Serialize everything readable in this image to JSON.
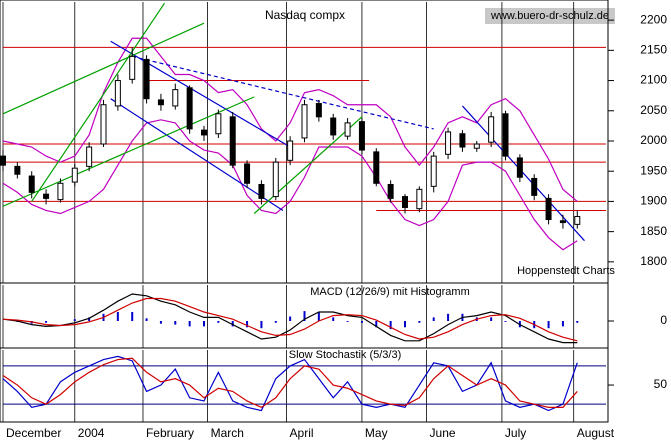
{
  "chart_data": [
    {
      "type": "candlestick",
      "title": "Nasdaq compx",
      "source": "www.buero-dr-schulz.de",
      "credit": "Hoppenstedt Charts",
      "x": [
        0,
        4,
        8,
        12,
        16,
        20,
        24,
        28,
        32,
        36,
        40,
        44,
        48,
        52,
        56,
        60,
        64,
        68,
        72,
        76,
        80,
        84,
        88,
        92,
        96,
        100,
        104,
        108,
        112,
        116,
        120,
        124,
        128,
        132,
        136,
        140,
        144,
        148,
        152,
        156,
        160
      ],
      "open": [
        1975,
        1958,
        1942,
        1912,
        1903,
        1932,
        1958,
        1995,
        2058,
        2102,
        2135,
        2068,
        2058,
        2088,
        2018,
        2012,
        2040,
        1962,
        1928,
        1908,
        1968,
        2005,
        2062,
        2038,
        2008,
        2032,
        1982,
        1928,
        1908,
        1888,
        1925,
        1978,
        2012,
        1988,
        1998,
        2045,
        1972,
        1938,
        1905,
        1868,
        1862
      ],
      "high": [
        1985,
        1965,
        1950,
        1920,
        1938,
        1962,
        1998,
        2068,
        2110,
        2155,
        2142,
        2078,
        2095,
        2092,
        2025,
        2052,
        2048,
        1968,
        1935,
        1972,
        2008,
        2068,
        2068,
        2045,
        2038,
        2038,
        1988,
        1935,
        1912,
        1925,
        1982,
        2022,
        2018,
        2000,
        2048,
        2050,
        1978,
        1945,
        1912,
        1878,
        1885
      ],
      "low": [
        1950,
        1938,
        1905,
        1895,
        1898,
        1925,
        1950,
        1990,
        2050,
        2095,
        2062,
        2050,
        2052,
        2012,
        2000,
        2005,
        1955,
        1922,
        1895,
        1902,
        1960,
        1998,
        2032,
        2002,
        2002,
        1978,
        1925,
        1898,
        1880,
        1882,
        1915,
        1970,
        1982,
        1982,
        1990,
        1968,
        1932,
        1902,
        1862,
        1855,
        1855
      ],
      "close": [
        1960,
        1945,
        1915,
        1905,
        1930,
        1955,
        1990,
        2060,
        2100,
        2140,
        2070,
        2060,
        2085,
        2020,
        2010,
        2045,
        1960,
        1930,
        1905,
        1965,
        2000,
        2060,
        2040,
        2010,
        2030,
        1985,
        1930,
        1905,
        1890,
        1920,
        1975,
        2015,
        1990,
        1995,
        2040,
        1975,
        1940,
        1910,
        1870,
        1865,
        1875
      ],
      "upper_band": {
        "color": "#c000c0",
        "values": [
          2000,
          1995,
          1990,
          1975,
          1965,
          1975,
          2010,
          2080,
          2130,
          2170,
          2170,
          2140,
          2110,
          2110,
          2100,
          2080,
          2085,
          2060,
          2020,
          2000,
          2030,
          2080,
          2085,
          2075,
          2060,
          2060,
          2060,
          2040,
          1990,
          1960,
          1990,
          2030,
          2040,
          2030,
          2060,
          2070,
          2050,
          2010,
          1970,
          1920,
          1900
        ]
      },
      "lower_band": {
        "color": "#c000c0",
        "values": [
          1930,
          1915,
          1895,
          1885,
          1880,
          1890,
          1900,
          1920,
          1960,
          2000,
          2030,
          2035,
          2030,
          2000,
          1985,
          1980,
          1960,
          1910,
          1885,
          1880,
          1900,
          1940,
          1990,
          1990,
          1990,
          1975,
          1940,
          1900,
          1870,
          1860,
          1870,
          1900,
          1960,
          1965,
          1965,
          1950,
          1910,
          1870,
          1840,
          1820,
          1835
        ]
      },
      "hlines": [
        {
          "value": 2155,
          "from": 0,
          "to": 168
        },
        {
          "value": 2100,
          "from": 40,
          "to": 102
        },
        {
          "value": 1995,
          "from": 0,
          "to": 168
        },
        {
          "value": 1965,
          "from": 0,
          "to": 168
        },
        {
          "value": 1900,
          "from": 0,
          "to": 168
        },
        {
          "value": 1885,
          "from": 104,
          "to": 168
        }
      ],
      "hline_color": "#d00000",
      "trendlines": [
        {
          "color": "#0000cc",
          "dashed": false,
          "x": [
            30,
            80
          ],
          "y": [
            2165,
            1990
          ]
        },
        {
          "color": "#0000cc",
          "dashed": false,
          "x": [
            30,
            78
          ],
          "y": [
            2070,
            1885
          ]
        },
        {
          "color": "#0000cc",
          "dashed": false,
          "x": [
            128,
            162
          ],
          "y": [
            2058,
            1835
          ]
        },
        {
          "color": "#0000cc",
          "dashed": true,
          "x": [
            36,
            120
          ],
          "y": [
            2140,
            2020
          ]
        },
        {
          "color": "#00a000",
          "dashed": false,
          "x": [
            0,
            56
          ],
          "y": [
            2045,
            2195
          ]
        },
        {
          "color": "#00a000",
          "dashed": false,
          "x": [
            0,
            70
          ],
          "y": [
            1892,
            2073
          ]
        },
        {
          "color": "#00a000",
          "dashed": false,
          "x": [
            8,
            45
          ],
          "y": [
            1900,
            2228
          ]
        },
        {
          "color": "#00a000",
          "dashed": false,
          "x": [
            70,
            100
          ],
          "y": [
            1880,
            2040
          ]
        }
      ],
      "xlim": [
        0,
        168
      ],
      "ylim": [
        1765,
        2230
      ],
      "yticks": [
        1800,
        1850,
        1900,
        1950,
        2000,
        2050,
        2100,
        2150,
        2200
      ]
    },
    {
      "type": "macd",
      "title": "MACD (12/26/9) mit Histogramm",
      "x": [
        0,
        4,
        8,
        12,
        16,
        20,
        24,
        28,
        32,
        36,
        40,
        44,
        48,
        52,
        56,
        60,
        64,
        68,
        72,
        76,
        80,
        84,
        88,
        92,
        96,
        100,
        104,
        108,
        112,
        116,
        120,
        124,
        128,
        132,
        136,
        140,
        144,
        148,
        152,
        156,
        160
      ],
      "macd": {
        "color": "#000000",
        "values": [
          2,
          0,
          -4,
          -6,
          -5,
          -2,
          3,
          12,
          22,
          30,
          28,
          22,
          18,
          10,
          4,
          4,
          -4,
          -12,
          -20,
          -18,
          -10,
          2,
          10,
          10,
          6,
          4,
          -6,
          -16,
          -22,
          -22,
          -14,
          -4,
          4,
          6,
          10,
          6,
          -4,
          -12,
          -20,
          -24,
          -24
        ]
      },
      "signal": {
        "color": "#d00000",
        "values": [
          2,
          1,
          -1,
          -4,
          -5,
          -4,
          -1,
          4,
          12,
          20,
          25,
          25,
          22,
          16,
          10,
          6,
          2,
          -5,
          -12,
          -16,
          -15,
          -9,
          0,
          6,
          7,
          6,
          1,
          -7,
          -15,
          -20,
          -18,
          -12,
          -4,
          2,
          6,
          7,
          3,
          -4,
          -12,
          -18,
          -22
        ]
      },
      "histogram": {
        "color": "#0000cc",
        "values": [
          0,
          -1,
          -3,
          -2,
          0,
          2,
          4,
          8,
          10,
          10,
          3,
          -3,
          -4,
          -6,
          -6,
          -2,
          -6,
          -7,
          -8,
          -2,
          5,
          11,
          10,
          4,
          -1,
          -2,
          -7,
          -9,
          -7,
          -2,
          4,
          8,
          8,
          4,
          4,
          -1,
          -7,
          -8,
          -8,
          -6,
          -2
        ]
      },
      "xlim": [
        0,
        168
      ],
      "ylim": [
        -30,
        40
      ],
      "yticks": [
        0
      ]
    },
    {
      "type": "line",
      "title": "Slow Stochastik (5/3/3)",
      "x": [
        0,
        4,
        8,
        12,
        16,
        20,
        24,
        28,
        32,
        36,
        40,
        44,
        48,
        52,
        56,
        60,
        64,
        68,
        72,
        76,
        80,
        84,
        88,
        92,
        96,
        100,
        104,
        108,
        112,
        116,
        120,
        124,
        128,
        132,
        136,
        140,
        144,
        148,
        152,
        156,
        160
      ],
      "series": [
        {
          "color": "#0000cc",
          "values": [
            60,
            40,
            15,
            20,
            55,
            70,
            80,
            90,
            95,
            88,
            40,
            50,
            75,
            30,
            25,
            70,
            25,
            15,
            10,
            60,
            80,
            90,
            60,
            30,
            55,
            20,
            15,
            20,
            15,
            50,
            85,
            80,
            40,
            50,
            85,
            25,
            15,
            20,
            10,
            20,
            85
          ]
        },
        {
          "color": "#d00000",
          "values": [
            65,
            50,
            30,
            20,
            35,
            55,
            70,
            82,
            90,
            92,
            70,
            55,
            60,
            50,
            30,
            45,
            40,
            25,
            15,
            30,
            60,
            80,
            75,
            50,
            45,
            35,
            25,
            20,
            18,
            30,
            60,
            80,
            65,
            50,
            60,
            50,
            25,
            20,
            15,
            15,
            40
          ]
        }
      ],
      "hlines": [
        80,
        20
      ],
      "hline_color": "#000080",
      "xlim": [
        0,
        168
      ],
      "ylim": [
        -8,
        105
      ],
      "yticks": [
        50
      ],
      "xticks": [
        {
          "value": 0,
          "label": "December"
        },
        {
          "value": 20,
          "label": "2004"
        },
        {
          "value": 39,
          "label": "February"
        },
        {
          "value": 57,
          "label": "March"
        },
        {
          "value": 79,
          "label": "April"
        },
        {
          "value": 100,
          "label": "May"
        },
        {
          "value": 118,
          "label": "June"
        },
        {
          "value": 139,
          "label": "July"
        },
        {
          "value": 159,
          "label": "August"
        }
      ]
    }
  ]
}
